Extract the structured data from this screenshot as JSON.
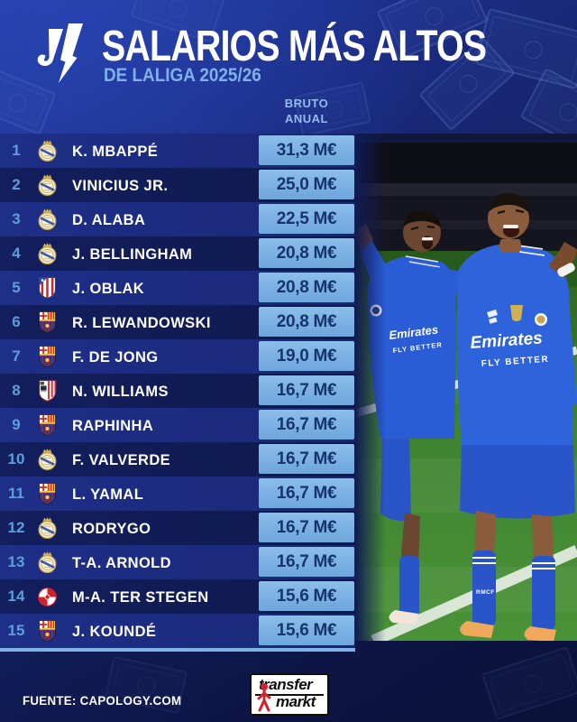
{
  "header": {
    "title": "SALARIOS MÁS ALTOS",
    "subtitle": "DE LALIGA 2025/26",
    "column_header": "BRUTO\nANUAL",
    "logo": "laliga-logo"
  },
  "chart_data": {
    "type": "table",
    "title": "SALARIOS MÁS ALTOS",
    "subtitle": "DE LALIGA 2025/26",
    "value_column": "BRUTO ANUAL",
    "unit": "M€",
    "rows": [
      {
        "rank": 1,
        "player": "K. MBAPPÉ",
        "club": "real-madrid",
        "salary_meur": 31.3
      },
      {
        "rank": 2,
        "player": "VINICIUS JR.",
        "club": "real-madrid",
        "salary_meur": 25.0
      },
      {
        "rank": 3,
        "player": "D. ALABA",
        "club": "real-madrid",
        "salary_meur": 22.5
      },
      {
        "rank": 4,
        "player": "J. BELLINGHAM",
        "club": "real-madrid",
        "salary_meur": 20.8
      },
      {
        "rank": 5,
        "player": "J. OBLAK",
        "club": "atletico-madrid",
        "salary_meur": 20.8
      },
      {
        "rank": 6,
        "player": "R. LEWANDOWSKI",
        "club": "barcelona",
        "salary_meur": 20.8
      },
      {
        "rank": 7,
        "player": "F. DE JONG",
        "club": "barcelona",
        "salary_meur": 19.0
      },
      {
        "rank": 8,
        "player": "N. WILLIAMS",
        "club": "athletic-club",
        "salary_meur": 16.7
      },
      {
        "rank": 9,
        "player": "RAPHINHA",
        "club": "barcelona",
        "salary_meur": 16.7
      },
      {
        "rank": 10,
        "player": "F. VALVERDE",
        "club": "real-madrid",
        "salary_meur": 16.7
      },
      {
        "rank": 11,
        "player": "L. YAMAL",
        "club": "barcelona",
        "salary_meur": 16.7
      },
      {
        "rank": 12,
        "player": "RODRYGO",
        "club": "real-madrid",
        "salary_meur": 16.7
      },
      {
        "rank": 13,
        "player": "T-A. ARNOLD",
        "club": "real-madrid",
        "salary_meur": 16.7
      },
      {
        "rank": 14,
        "player": "M-A. TER STEGEN",
        "club": "girona",
        "salary_meur": 15.6
      },
      {
        "rank": 15,
        "player": "J. KOUNDÉ",
        "club": "barcelona",
        "salary_meur": 15.6
      }
    ],
    "source": "FUENTE: CAPOLOGY.COM"
  },
  "photo": {
    "jersey_sponsor": "Emirates",
    "jersey_tagline": "FLY BETTER",
    "sock_text": "RMCF"
  },
  "footer": {
    "source": "FUENTE: CAPOLOGY.COM",
    "tm_logo_line1": "transfer",
    "tm_logo_line2": "markt"
  },
  "colors": {
    "accent_light_blue": "#7fb2e5",
    "row_odd": "#1b2a7c",
    "row_even": "#101b52",
    "salary_text": "#17356d",
    "rank_text": "#5d9fdb",
    "subtitle_text": "#7fb0e8",
    "kit_blue": "#2a5cd6",
    "pitch_green": "#3f8230"
  }
}
